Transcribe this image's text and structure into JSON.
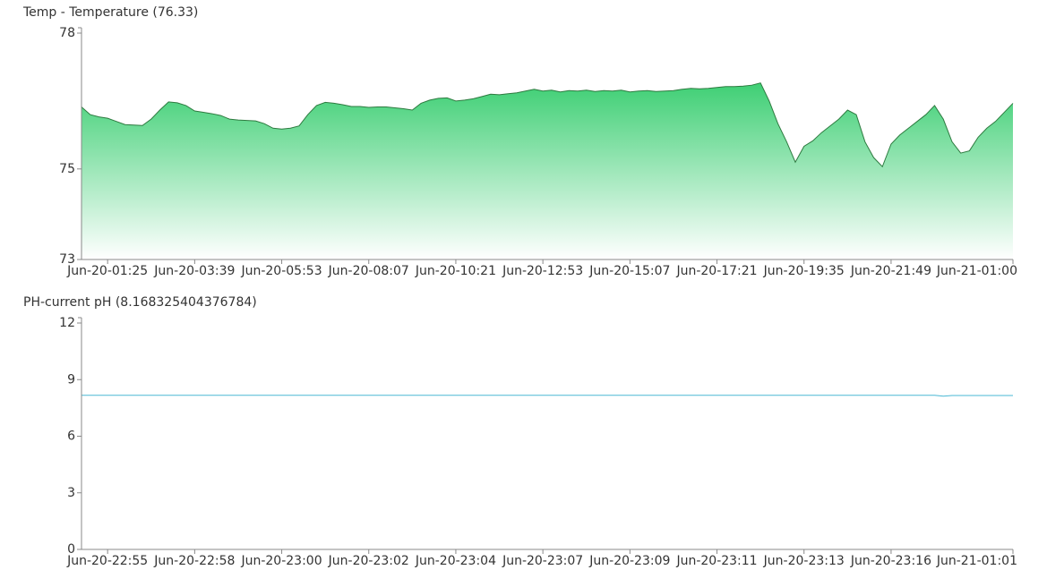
{
  "chart_data": [
    {
      "type": "area",
      "title": "Temp - Temperature (76.33)",
      "color": "#3ecf74",
      "line_color": "#2d7a3f",
      "categories": [
        null,
        null,
        null,
        "Jun-20-01:25",
        null,
        null,
        null,
        null,
        null,
        null,
        null,
        null,
        null,
        "Jun-20-03:39",
        null,
        null,
        null,
        null,
        null,
        null,
        null,
        null,
        null,
        "Jun-20-05:53",
        null,
        null,
        null,
        null,
        null,
        null,
        null,
        null,
        null,
        "Jun-20-08:07",
        null,
        null,
        null,
        null,
        null,
        null,
        null,
        null,
        null,
        "Jun-20-10:21",
        null,
        null,
        null,
        null,
        null,
        null,
        null,
        null,
        null,
        "Jun-20-12:53",
        null,
        null,
        null,
        null,
        null,
        null,
        null,
        null,
        null,
        "Jun-20-15:07",
        null,
        null,
        null,
        null,
        null,
        null,
        null,
        null,
        null,
        "Jun-20-17:21",
        null,
        null,
        null,
        null,
        null,
        null,
        null,
        null,
        null,
        "Jun-20-19:35",
        null,
        null,
        null,
        null,
        null,
        null,
        null,
        null,
        null,
        "Jun-20-21:49",
        null,
        null,
        null,
        null,
        null,
        null,
        null,
        null,
        null,
        null,
        null,
        null,
        null,
        "Jun-21-01:00"
      ],
      "values": [
        76.37,
        76.2,
        76.15,
        76.12,
        76.05,
        75.98,
        75.97,
        75.96,
        76.1,
        76.3,
        76.48,
        76.46,
        76.4,
        76.28,
        76.25,
        76.22,
        76.18,
        76.1,
        76.08,
        76.07,
        76.06,
        76.0,
        75.9,
        75.88,
        75.9,
        75.95,
        76.2,
        76.4,
        76.47,
        76.45,
        76.42,
        76.38,
        76.38,
        76.36,
        76.37,
        76.37,
        76.35,
        76.33,
        76.3,
        76.45,
        76.52,
        76.56,
        76.57,
        76.5,
        76.52,
        76.55,
        76.6,
        76.65,
        76.64,
        76.66,
        76.68,
        76.72,
        76.76,
        76.72,
        76.74,
        76.7,
        76.73,
        76.72,
        76.74,
        76.71,
        76.73,
        76.72,
        76.74,
        76.7,
        76.72,
        76.73,
        76.71,
        76.72,
        76.73,
        76.76,
        76.78,
        76.77,
        76.78,
        76.8,
        76.82,
        76.82,
        76.83,
        76.85,
        76.9,
        76.5,
        76.0,
        75.6,
        75.15,
        75.5,
        75.62,
        75.8,
        75.95,
        76.1,
        76.3,
        76.2,
        75.6,
        75.25,
        75.05,
        75.55,
        75.75,
        75.9,
        76.05,
        76.2,
        76.4,
        76.1,
        75.6,
        75.35,
        75.4,
        75.7,
        75.9,
        76.05,
        76.25,
        76.45
      ],
      "ylim": [
        73,
        78
      ],
      "yticks": [
        73,
        75,
        78
      ]
    },
    {
      "type": "line",
      "title": "PH-current pH (8.168325404376784)",
      "color": "#4ab8d4",
      "categories": [
        null,
        null,
        null,
        "Jun-20-22:55",
        null,
        null,
        null,
        null,
        null,
        null,
        null,
        null,
        null,
        "Jun-20-22:58",
        null,
        null,
        null,
        null,
        null,
        null,
        null,
        null,
        null,
        "Jun-20-23:00",
        null,
        null,
        null,
        null,
        null,
        null,
        null,
        null,
        null,
        "Jun-20-23:02",
        null,
        null,
        null,
        null,
        null,
        null,
        null,
        null,
        null,
        "Jun-20-23:04",
        null,
        null,
        null,
        null,
        null,
        null,
        null,
        null,
        null,
        "Jun-20-23:07",
        null,
        null,
        null,
        null,
        null,
        null,
        null,
        null,
        null,
        "Jun-20-23:09",
        null,
        null,
        null,
        null,
        null,
        null,
        null,
        null,
        null,
        "Jun-20-23:11",
        null,
        null,
        null,
        null,
        null,
        null,
        null,
        null,
        null,
        "Jun-20-23:13",
        null,
        null,
        null,
        null,
        null,
        null,
        null,
        null,
        null,
        "Jun-20-23:16",
        null,
        null,
        null,
        null,
        null,
        null,
        null,
        null,
        null,
        null,
        null,
        null,
        null,
        "Jun-21-01:01"
      ],
      "values": [
        8.17,
        8.17,
        8.17,
        8.17,
        8.17,
        8.17,
        8.17,
        8.17,
        8.17,
        8.17,
        8.17,
        8.17,
        8.17,
        8.17,
        8.17,
        8.17,
        8.17,
        8.17,
        8.17,
        8.17,
        8.17,
        8.17,
        8.17,
        8.17,
        8.17,
        8.17,
        8.17,
        8.17,
        8.17,
        8.17,
        8.17,
        8.17,
        8.17,
        8.17,
        8.17,
        8.17,
        8.17,
        8.17,
        8.17,
        8.17,
        8.17,
        8.17,
        8.17,
        8.17,
        8.17,
        8.17,
        8.17,
        8.17,
        8.17,
        8.17,
        8.17,
        8.17,
        8.17,
        8.17,
        8.17,
        8.17,
        8.17,
        8.17,
        8.17,
        8.17,
        8.17,
        8.17,
        8.17,
        8.17,
        8.17,
        8.17,
        8.17,
        8.17,
        8.17,
        8.17,
        8.17,
        8.17,
        8.17,
        8.17,
        8.17,
        8.17,
        8.17,
        8.17,
        8.17,
        8.17,
        8.17,
        8.17,
        8.17,
        8.17,
        8.17,
        8.17,
        8.17,
        8.17,
        8.17,
        8.17,
        8.17,
        8.17,
        8.17,
        8.17,
        8.17,
        8.17,
        8.17,
        8.17,
        8.17,
        8.12,
        8.16,
        8.16,
        8.16,
        8.16,
        8.16,
        8.16,
        8.16,
        8.16
      ],
      "ylim": [
        0,
        12
      ],
      "yticks": [
        0,
        3,
        6,
        9,
        12
      ]
    }
  ]
}
